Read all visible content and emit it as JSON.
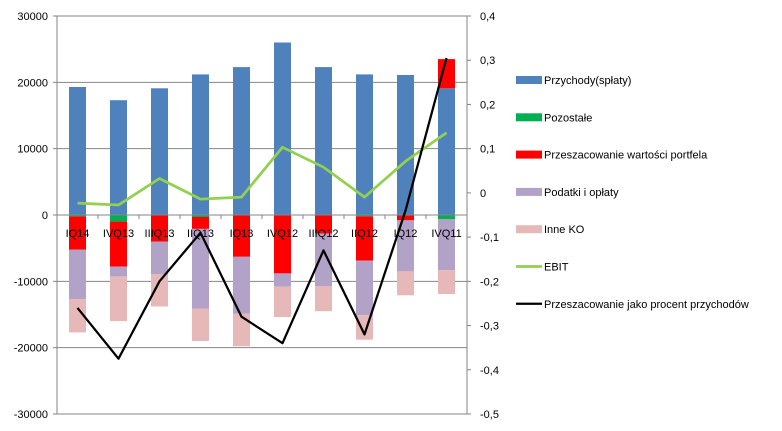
{
  "chart_data": {
    "type": "bar",
    "stacked": true,
    "categories": [
      "IQ14",
      "IVQ13",
      "IIIQ13",
      "IIQ13",
      "IQ13",
      "IVQ12",
      "IIIQ12",
      "IIQ12",
      "IQ12",
      "IVQ11"
    ],
    "ylim": [
      -30000,
      30000
    ],
    "yticks": [
      30000,
      20000,
      10000,
      0,
      -10000,
      -20000,
      -30000
    ],
    "y2lim": [
      -0.5,
      0.4
    ],
    "y2ticks": [
      "0,4",
      "0,3",
      "0,2",
      "0,1",
      "0",
      "-0,1",
      "-0,2",
      "-0,3",
      "-0,4",
      "-0,5"
    ],
    "grid": true,
    "legend_position": "right",
    "series": [
      {
        "name": "Przychody(spłaty)",
        "type": "bar",
        "axis": "left",
        "color": "#4f81bd",
        "values": [
          19300,
          17300,
          19100,
          21200,
          22300,
          26000,
          22300,
          21200,
          21100,
          19100
        ]
      },
      {
        "name": "Pozostałe",
        "type": "bar",
        "axis": "left",
        "color": "#00b050",
        "values": [
          -200,
          -1000,
          0,
          -300,
          0,
          0,
          0,
          -200,
          0,
          -600
        ]
      },
      {
        "name": "Przeszacowanie wartości portfela",
        "type": "bar",
        "axis": "left",
        "color": "#ff0000",
        "values": [
          -5000,
          -6800,
          -4000,
          -1800,
          -6300,
          -8800,
          -2800,
          -6700,
          -800,
          4400
        ]
      },
      {
        "name": "Podatki i opłaty",
        "type": "bar",
        "axis": "left",
        "color": "#b3a2c7",
        "values": [
          -7500,
          -1500,
          -4900,
          -12000,
          -8600,
          -2000,
          -7900,
          -8200,
          -7700,
          -7700
        ]
      },
      {
        "name": "Inne KO",
        "type": "bar",
        "axis": "left",
        "color": "#e6b9b8",
        "values": [
          -5000,
          -6700,
          -4900,
          -4900,
          -4900,
          -4600,
          -3800,
          -3700,
          -3600,
          -3600
        ]
      },
      {
        "name": "EBIT",
        "type": "line",
        "axis": "left",
        "color": "#92d050",
        "values": [
          1800,
          1500,
          5500,
          2400,
          2700,
          10200,
          7200,
          2700,
          8100,
          12400
        ]
      },
      {
        "name": "Przeszacowanie jako procent przychodów",
        "type": "line",
        "axis": "right",
        "color": "#000000",
        "values": [
          -0.26,
          -0.375,
          -0.2,
          -0.09,
          -0.28,
          -0.34,
          -0.13,
          -0.32,
          -0.04,
          0.305
        ]
      }
    ]
  }
}
